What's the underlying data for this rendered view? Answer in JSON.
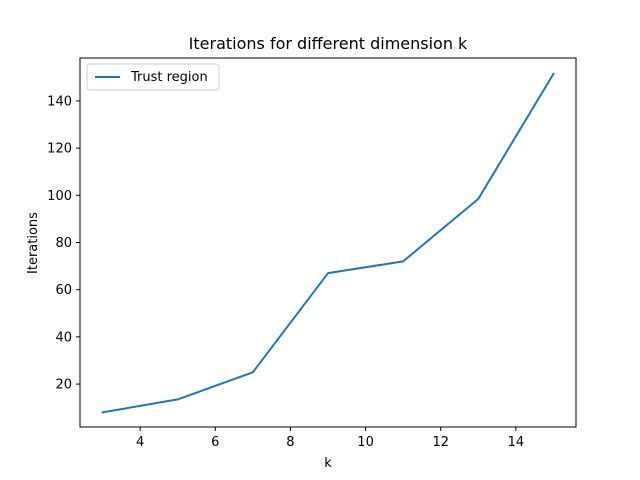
{
  "chart_data": {
    "type": "line",
    "title": "Iterations for different dimension k",
    "xlabel": "k",
    "ylabel": "Iterations",
    "xlim": [
      2.4,
      15.6
    ],
    "ylim": [
      1.8,
      158.2
    ],
    "xticks": [
      4,
      6,
      8,
      10,
      12,
      14
    ],
    "yticks": [
      20,
      40,
      60,
      80,
      100,
      120,
      140
    ],
    "grid": false,
    "legend_position": "top-left",
    "series": [
      {
        "name": "Trust region",
        "color": "#1f77b4",
        "x": [
          3,
          5,
          7,
          9,
          11,
          13,
          15
        ],
        "y": [
          8,
          13.5,
          25,
          67,
          72,
          98.5,
          151.5
        ]
      }
    ]
  }
}
